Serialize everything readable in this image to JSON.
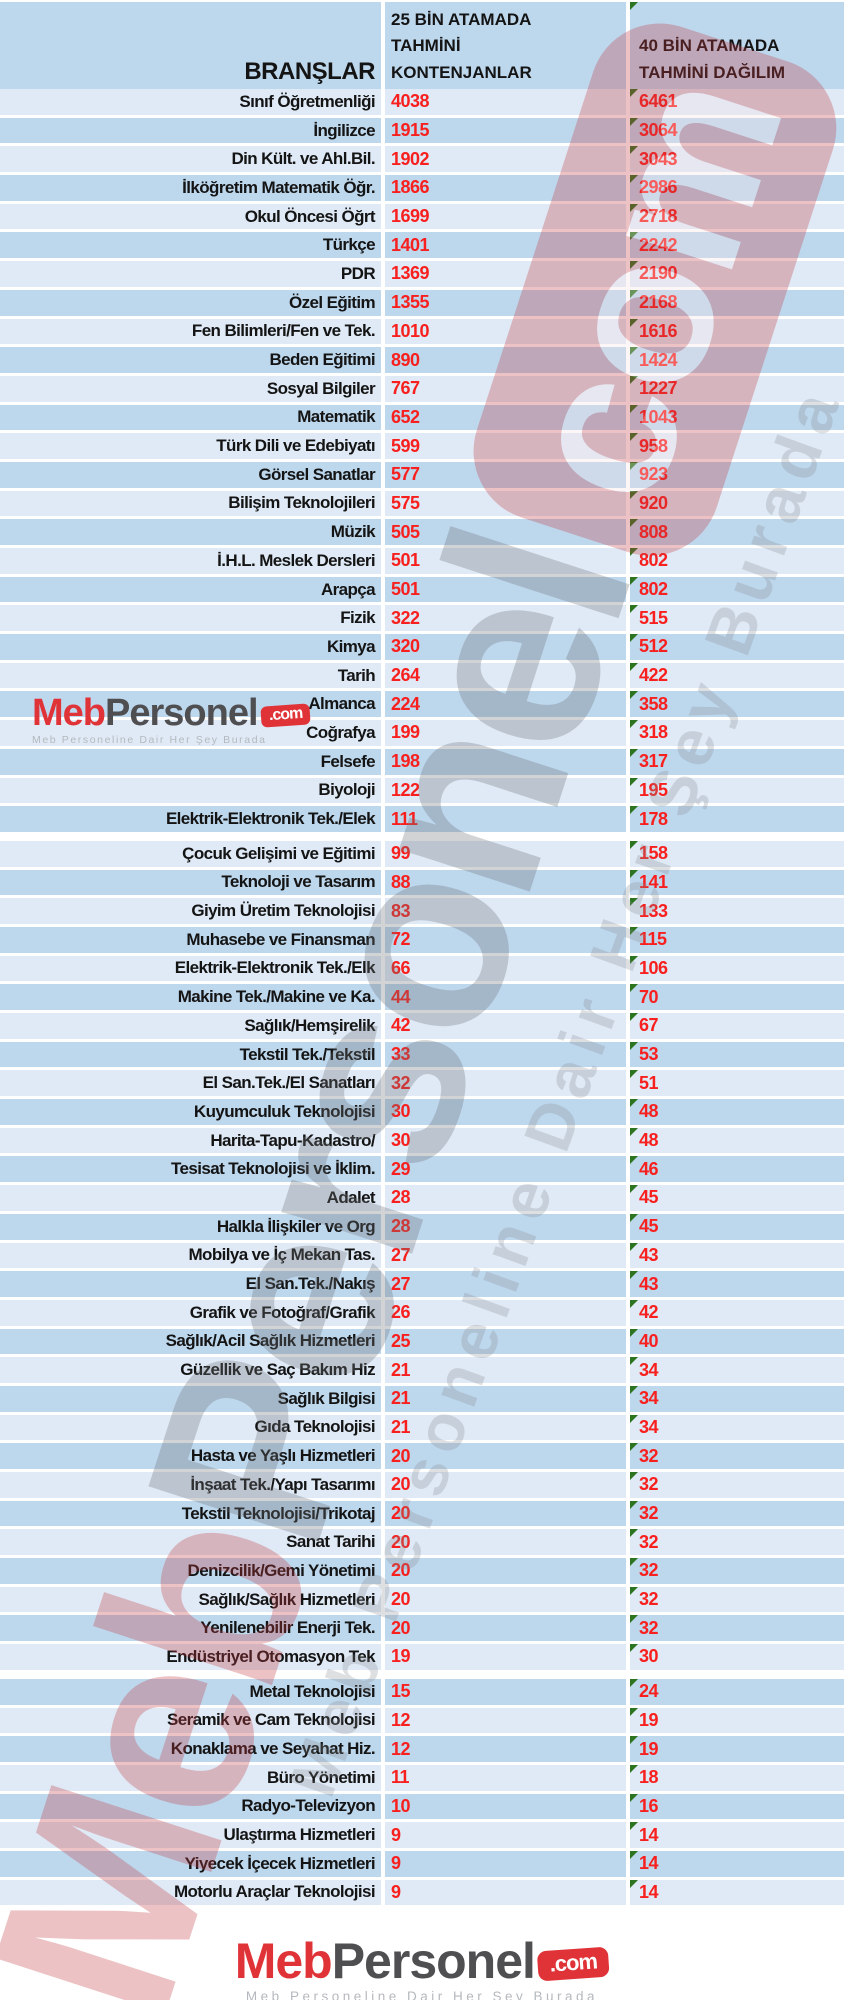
{
  "colors": {
    "stripe_light": "#dfeaf6",
    "stripe_dark": "#bdd7ed",
    "number_red": "#f8201e",
    "label_dark": "#141414",
    "comment_triangle_green": "#2c7420",
    "logo_red": "#e03338",
    "logo_gray": "#4f4f52",
    "tagline_gray": "#b5b9be"
  },
  "header": {
    "branches": "BRANŞLAR",
    "col25": "25 BİN ATAMADA TAHMİNİ KONTENJANLAR",
    "col40": "40 BİN ATAMADA TAHMİNİ DAĞILIM"
  },
  "logo": {
    "meb": "Meb",
    "personel": "Personel",
    "badge": ".com",
    "tagline": "Meb Personeline Dair Her Şey Burada"
  },
  "watermark": {
    "meb": "Meb",
    "personel": "Personel",
    "badge": "com",
    "tagline": "Meb Personeline Dair Her Şey Burada"
  },
  "table": {
    "group_gap_before": [
      27,
      56
    ],
    "rows": [
      {
        "branch": "Sınıf Öğretmenliği",
        "v25": "4038",
        "v40": "6461"
      },
      {
        "branch": "İngilizce",
        "v25": "1915",
        "v40": "3064"
      },
      {
        "branch": "Din Kült. ve Ahl.Bil.",
        "v25": "1902",
        "v40": "3043"
      },
      {
        "branch": "İlköğretim Matematik Öğr.",
        "v25": "1866",
        "v40": "2986"
      },
      {
        "branch": "Okul Öncesi Öğrt",
        "v25": "1699",
        "v40": "2718"
      },
      {
        "branch": "Türkçe",
        "v25": "1401",
        "v40": "2242"
      },
      {
        "branch": "PDR",
        "v25": "1369",
        "v40": "2190"
      },
      {
        "branch": "Özel Eğitim",
        "v25": "1355",
        "v40": "2168"
      },
      {
        "branch": "Fen Bilimleri/Fen ve Tek.",
        "v25": "1010",
        "v40": "1616"
      },
      {
        "branch": "Beden Eğitimi",
        "v25": "890",
        "v40": "1424"
      },
      {
        "branch": "Sosyal Bilgiler",
        "v25": "767",
        "v40": "1227"
      },
      {
        "branch": "Matematik",
        "v25": "652",
        "v40": "1043"
      },
      {
        "branch": "Türk Dili ve Edebiyatı",
        "v25": "599",
        "v40": "958"
      },
      {
        "branch": "Görsel Sanatlar",
        "v25": "577",
        "v40": "923"
      },
      {
        "branch": "Bilişim Teknolojileri",
        "v25": "575",
        "v40": "920"
      },
      {
        "branch": "Müzik",
        "v25": "505",
        "v40": "808"
      },
      {
        "branch": "İ.H.L. Meslek Dersleri",
        "v25": "501",
        "v40": "802"
      },
      {
        "branch": "Arapça",
        "v25": "501",
        "v40": "802"
      },
      {
        "branch": "Fizik",
        "v25": "322",
        "v40": "515"
      },
      {
        "branch": "Kimya",
        "v25": "320",
        "v40": "512"
      },
      {
        "branch": "Tarih",
        "v25": "264",
        "v40": "422"
      },
      {
        "branch": "Almanca",
        "v25": "224",
        "v40": "358"
      },
      {
        "branch": "Coğrafya",
        "v25": "199",
        "v40": "318"
      },
      {
        "branch": "Felsefe",
        "v25": "198",
        "v40": "317"
      },
      {
        "branch": "Biyoloji",
        "v25": "122",
        "v40": "195"
      },
      {
        "branch": "Elektrik-Elektronik Tek./Elek",
        "v25": "111",
        "v40": "178"
      },
      {
        "branch": "Çocuk Gelişimi ve Eğitimi",
        "v25": "99",
        "v40": "158"
      },
      {
        "branch": "Teknoloji ve Tasarım",
        "v25": "88",
        "v40": "141"
      },
      {
        "branch": "Giyim Üretim Teknolojisi",
        "v25": "83",
        "v40": "133"
      },
      {
        "branch": "Muhasebe ve Finansman",
        "v25": "72",
        "v40": "115"
      },
      {
        "branch": "Elektrik-Elektronik Tek./Elk",
        "v25": "66",
        "v40": "106"
      },
      {
        "branch": "Makine Tek./Makine ve Ka.",
        "v25": "44",
        "v40": "70"
      },
      {
        "branch": "Sağlık/Hemşirelik",
        "v25": "42",
        "v40": "67"
      },
      {
        "branch": "Tekstil Tek./Tekstil",
        "v25": "33",
        "v40": "53"
      },
      {
        "branch": "El San.Tek./El Sanatları",
        "v25": "32",
        "v40": "51"
      },
      {
        "branch": "Kuyumculuk Teknolojisi",
        "v25": "30",
        "v40": "48"
      },
      {
        "branch": "Harita-Tapu-Kadastro/",
        "v25": "30",
        "v40": "48"
      },
      {
        "branch": "Tesisat Teknolojisi ve İklim.",
        "v25": "29",
        "v40": "46"
      },
      {
        "branch": "Adalet",
        "v25": "28",
        "v40": "45"
      },
      {
        "branch": "Halkla İlişkiler ve Org",
        "v25": "28",
        "v40": "45"
      },
      {
        "branch": "Mobilya ve İç Mekan Tas.",
        "v25": "27",
        "v40": "43"
      },
      {
        "branch": "El San.Tek./Nakış",
        "v25": "27",
        "v40": "43"
      },
      {
        "branch": "Grafik ve Fotoğraf/Grafik",
        "v25": "26",
        "v40": "42"
      },
      {
        "branch": "Sağlık/Acil Sağlık Hizmetleri",
        "v25": "25",
        "v40": "40"
      },
      {
        "branch": "Güzellik ve Saç Bakım Hiz",
        "v25": "21",
        "v40": "34"
      },
      {
        "branch": "Sağlık Bilgisi",
        "v25": "21",
        "v40": "34"
      },
      {
        "branch": "Gıda Teknolojisi",
        "v25": "21",
        "v40": "34"
      },
      {
        "branch": "Hasta ve Yaşlı Hizmetleri",
        "v25": "20",
        "v40": "32"
      },
      {
        "branch": "İnşaat Tek./Yapı Tasarımı",
        "v25": "20",
        "v40": "32"
      },
      {
        "branch": "Tekstil Teknolojisi/Trikotaj",
        "v25": "20",
        "v40": "32"
      },
      {
        "branch": "Sanat Tarihi",
        "v25": "20",
        "v40": "32"
      },
      {
        "branch": "Denizcilik/Gemi Yönetimi",
        "v25": "20",
        "v40": "32"
      },
      {
        "branch": "Sağlık/Sağlık Hizmetleri",
        "v25": "20",
        "v40": "32"
      },
      {
        "branch": "Yenilenebilir Enerji Tek.",
        "v25": "20",
        "v40": "32"
      },
      {
        "branch": "Endüstriyel Otomasyon Tek",
        "v25": "19",
        "v40": "30"
      },
      {
        "branch": "Metal Teknolojisi",
        "v25": "15",
        "v40": "24"
      },
      {
        "branch": "Seramik ve Cam Teknolojisi",
        "v25": "12",
        "v40": "19"
      },
      {
        "branch": "Konaklama ve Seyahat Hiz.",
        "v25": "12",
        "v40": "19"
      },
      {
        "branch": "Büro Yönetimi",
        "v25": "11",
        "v40": "18"
      },
      {
        "branch": "Radyo-Televizyon",
        "v25": "10",
        "v40": "16"
      },
      {
        "branch": "Ulaştırma Hizmetleri",
        "v25": "9",
        "v40": "14"
      },
      {
        "branch": "Yiyecek İçecek Hizmetleri",
        "v25": "9",
        "v40": "14"
      },
      {
        "branch": "Motorlu Araçlar Teknolojisi",
        "v25": "9",
        "v40": "14"
      }
    ]
  }
}
